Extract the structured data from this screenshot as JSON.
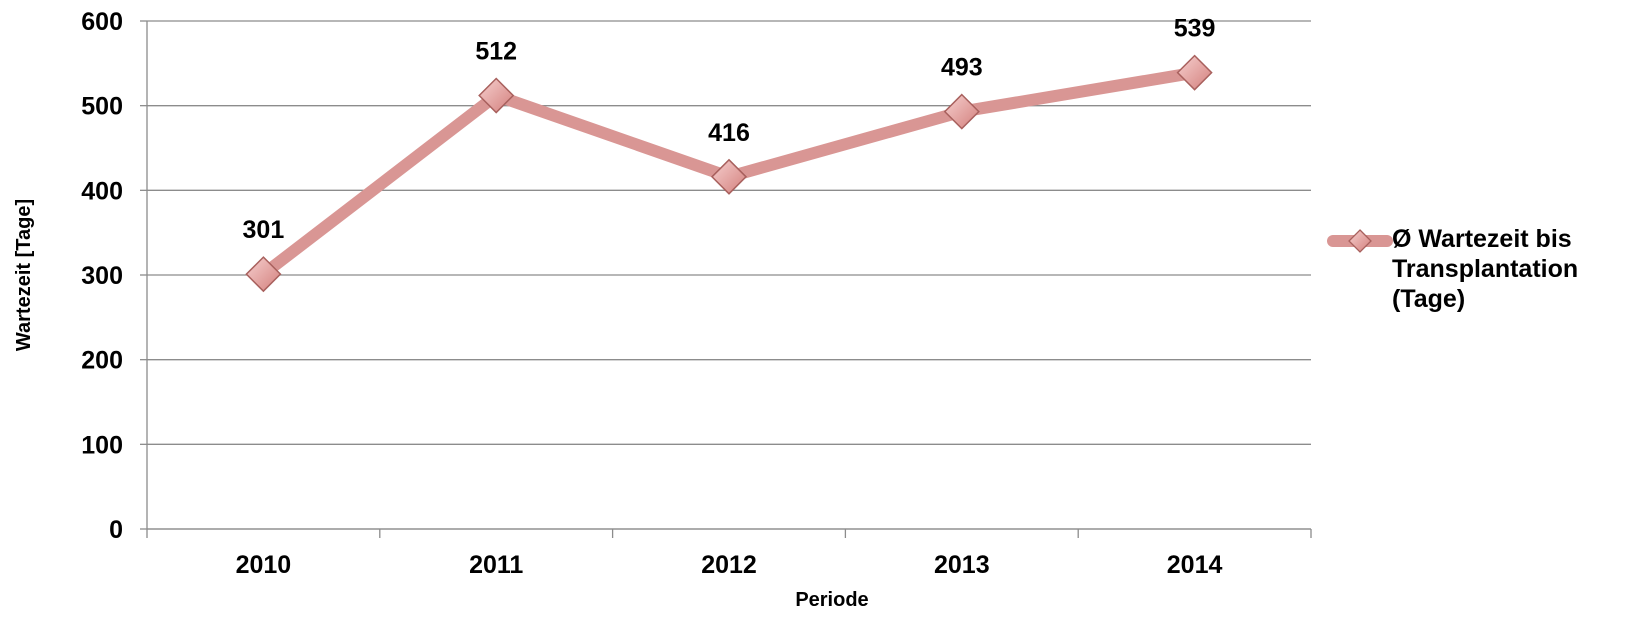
{
  "chart_data": {
    "type": "line",
    "x_label": "Periode",
    "y_label": "Wartezeit [Tage]",
    "categories": [
      "2010",
      "2011",
      "2012",
      "2013",
      "2014"
    ],
    "series": [
      {
        "name": "Ø Wartezeit bis Transplantation (Tage)",
        "color": "#d99694",
        "values": [
          301,
          512,
          416,
          493,
          539
        ]
      }
    ],
    "ylim": [
      0,
      600
    ],
    "yticks": [
      0,
      100,
      200,
      300,
      400,
      500,
      600
    ],
    "grid": true,
    "legend": "right"
  }
}
